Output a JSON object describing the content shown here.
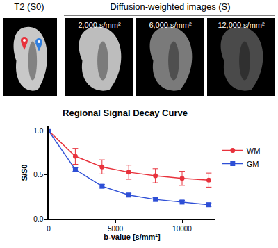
{
  "panel": {
    "left_label": "T2 (S0)",
    "group_label": "Diffusion-weighted images (S)",
    "image_labels": [
      "2,000 s/mm²",
      "6,000 s/mm²",
      "12,000 s/mm²"
    ]
  },
  "chart_data": {
    "type": "line",
    "title": "Regional Signal Decay Curve",
    "x_label": "b-value [s/mm²]",
    "y_label": "S/S0",
    "x": [
      0,
      2000,
      4000,
      6000,
      8000,
      10000,
      12000
    ],
    "series": [
      {
        "name": "WM",
        "color": "#e8323c",
        "marker": "circle",
        "line_style": "solid",
        "values": [
          1.0,
          0.71,
          0.59,
          0.53,
          0.49,
          0.46,
          0.44
        ],
        "errors": [
          0,
          0.09,
          0.08,
          0.08,
          0.08,
          0.08,
          0.08
        ]
      },
      {
        "name": "GM",
        "color": "#2e4fd6",
        "marker": "square",
        "line_style": "solid",
        "values": [
          1.0,
          0.56,
          0.37,
          0.27,
          0.22,
          0.19,
          0.16
        ],
        "errors": [
          0,
          0.02,
          0.02,
          0.02,
          0.02,
          0.02,
          0.02
        ]
      }
    ],
    "xlim": [
      0,
      12500
    ],
    "xticks": [
      0,
      5000,
      10000
    ],
    "ylim": [
      0,
      1.05
    ],
    "yticks": [
      {
        "value": 0,
        "label": "0.0"
      },
      {
        "value": 0.5,
        "label": "0.5"
      },
      {
        "value": 1.0,
        "label": "1.0"
      }
    ],
    "grid": false,
    "legend": "right"
  }
}
